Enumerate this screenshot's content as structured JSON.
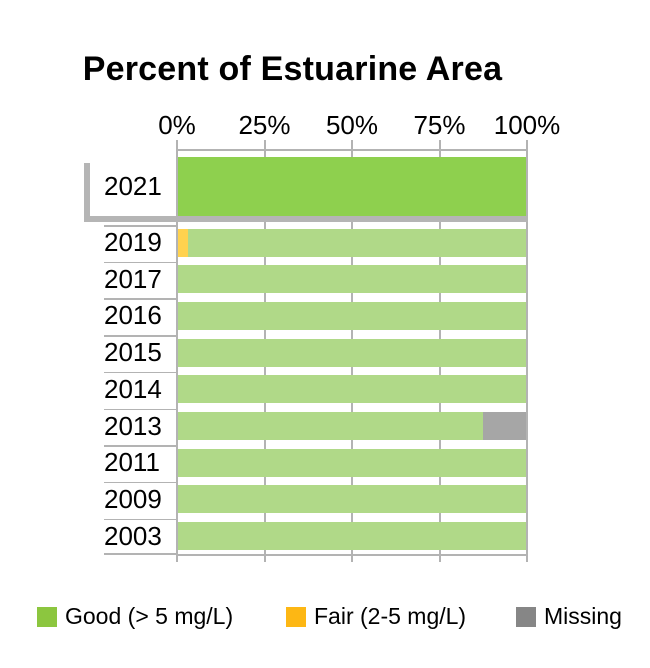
{
  "title": "Percent of Estuarine Area",
  "chart_data": {
    "type": "bar",
    "orientation": "horizontal",
    "stacked": true,
    "title": "Percent of Estuarine Area",
    "x_axis": {
      "ticks": [
        "0%",
        "25%",
        "50%",
        "75%",
        "100%"
      ],
      "tick_values": [
        0,
        25,
        50,
        75,
        100
      ],
      "range": [
        0,
        100
      ],
      "position": "top",
      "grid": true
    },
    "categories": [
      "2021",
      "2019",
      "2017",
      "2016",
      "2015",
      "2014",
      "2013",
      "2011",
      "2009",
      "2003"
    ],
    "highlighted_category": "2021",
    "series": [
      {
        "name": "Fair (2-5 mg/L)",
        "key": "fair",
        "values": [
          0,
          3,
          0,
          0,
          0,
          0,
          0,
          0,
          0,
          0
        ]
      },
      {
        "name": "Good (> 5 mg/L)",
        "key": "good",
        "values": [
          100,
          97,
          100,
          100,
          100,
          100,
          87.5,
          100,
          100,
          100
        ]
      },
      {
        "name": "Missing",
        "key": "missing",
        "values": [
          0,
          0,
          0,
          0,
          0,
          0,
          12.5,
          0,
          0,
          0
        ]
      }
    ],
    "legend": [
      {
        "key": "good",
        "label": "Good (> 5 mg/L)",
        "color": "#8cc63f"
      },
      {
        "key": "fair",
        "label": "Fair (2-5 mg/L)",
        "color": "#fdb714"
      },
      {
        "key": "missing",
        "label": "Missing",
        "color": "#868686"
      }
    ],
    "colors": {
      "good_highlight": "#8ed04e",
      "good_faded": "#b0d988",
      "fair_faded": "#ffd24f",
      "missing_faded": "#a6a6a6",
      "axis": "#b3b3b3",
      "bracket": "#b5b5b5",
      "text": "#000000"
    },
    "legend_position": "bottom"
  }
}
